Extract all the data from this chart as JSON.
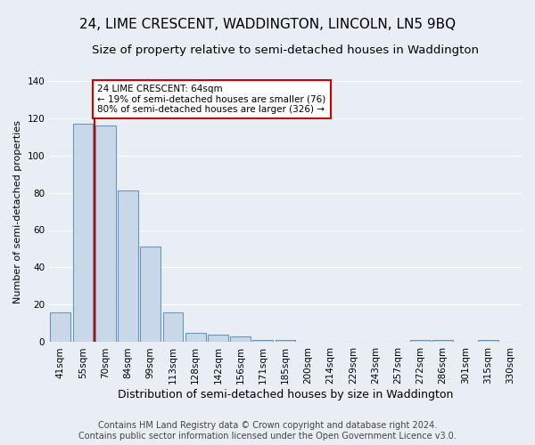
{
  "title1": "24, LIME CRESCENT, WADDINGTON, LINCOLN, LN5 9BQ",
  "title2": "Size of property relative to semi-detached houses in Waddington",
  "xlabel": "Distribution of semi-detached houses by size in Waddington",
  "ylabel": "Number of semi-detached properties",
  "footer1": "Contains HM Land Registry data © Crown copyright and database right 2024.",
  "footer2": "Contains public sector information licensed under the Open Government Licence v3.0.",
  "categories": [
    "41sqm",
    "55sqm",
    "70sqm",
    "84sqm",
    "99sqm",
    "113sqm",
    "128sqm",
    "142sqm",
    "156sqm",
    "171sqm",
    "185sqm",
    "200sqm",
    "214sqm",
    "229sqm",
    "243sqm",
    "257sqm",
    "272sqm",
    "286sqm",
    "301sqm",
    "315sqm",
    "330sqm"
  ],
  "values": [
    16,
    117,
    116,
    81,
    51,
    16,
    5,
    4,
    3,
    1,
    1,
    0,
    0,
    0,
    0,
    0,
    1,
    1,
    0,
    1,
    0
  ],
  "bar_color": "#c8d8e8",
  "bar_edge_color": "#6699bb",
  "property_size_label": "64sqm",
  "property_name": "24 LIME CRESCENT",
  "pct_smaller": 19,
  "n_smaller": 76,
  "pct_larger": 80,
  "n_larger": 326,
  "vline_color": "#cc0000",
  "annotation_box_color": "#cc0000",
  "ylim": [
    0,
    140
  ],
  "yticks": [
    0,
    20,
    40,
    60,
    80,
    100,
    120,
    140
  ],
  "bg_color": "#e8eef4",
  "plot_bg_color": "#e8eef4",
  "grid_color": "#ffffff",
  "title1_fontsize": 11,
  "title2_fontsize": 9.5,
  "xlabel_fontsize": 9,
  "ylabel_fontsize": 8,
  "tick_fontsize": 7.5,
  "footer_fontsize": 7,
  "vline_x_index": 1.5
}
